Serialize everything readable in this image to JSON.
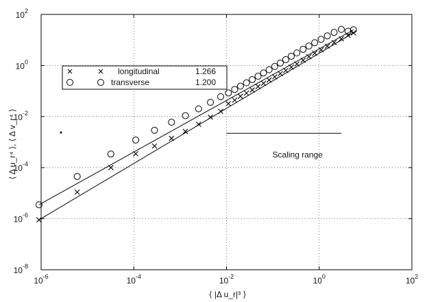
{
  "chart_data": {
    "type": "scatter",
    "title": "",
    "xlabel": "⟨ |Δ u_r|³ ⟩",
    "ylabel": "⟨ Δ u_r⁴ ⟩, ⟨ Δ v_r⁴ ⟩",
    "x_scale": "log",
    "y_scale": "log",
    "xlim": [
      1e-06,
      100
    ],
    "ylim": [
      1e-08,
      100
    ],
    "grid": true,
    "x_ticks": [
      1e-06,
      0.0001,
      0.01,
      1,
      100
    ],
    "y_ticks": [
      1e-08,
      1e-06,
      0.0001,
      0.01,
      1,
      100
    ],
    "x_tick_labels": [
      {
        "base": "10",
        "exp": "-6"
      },
      {
        "base": "10",
        "exp": "-4"
      },
      {
        "base": "10",
        "exp": "-2"
      },
      {
        "base": "10",
        "exp": "0"
      },
      {
        "base": "10",
        "exp": "2"
      }
    ],
    "y_tick_labels": [
      {
        "base": "10",
        "exp": "-8"
      },
      {
        "base": "10",
        "exp": "-6"
      },
      {
        "base": "10",
        "exp": "-4"
      },
      {
        "base": "10",
        "exp": "-2"
      },
      {
        "base": "10",
        "exp": "0"
      },
      {
        "base": "10",
        "exp": "2"
      }
    ],
    "legend_position": "upper-left",
    "series": [
      {
        "name": "longitudinal",
        "slope_label": "1.266",
        "marker": "x",
        "points": [
          [
            9e-07,
            9e-07
          ],
          [
            6e-06,
            1.1e-05
          ],
          [
            3.2e-05,
            0.0001
          ],
          [
            0.00011,
            0.00035
          ],
          [
            0.00028,
            0.0007
          ],
          [
            0.00065,
            0.0014
          ],
          [
            0.0013,
            0.0026
          ],
          [
            0.0025,
            0.005
          ],
          [
            0.0045,
            0.0095
          ],
          [
            0.0075,
            0.016
          ],
          [
            0.011,
            0.032
          ],
          [
            0.015,
            0.044
          ],
          [
            0.02,
            0.062
          ],
          [
            0.027,
            0.083
          ],
          [
            0.036,
            0.11
          ],
          [
            0.048,
            0.15
          ],
          [
            0.063,
            0.2
          ],
          [
            0.083,
            0.27
          ],
          [
            0.11,
            0.36
          ],
          [
            0.145,
            0.48
          ],
          [
            0.19,
            0.64
          ],
          [
            0.25,
            0.86
          ],
          [
            0.33,
            1.15
          ],
          [
            0.45,
            1.6
          ],
          [
            0.6,
            2.2
          ],
          [
            0.8,
            3
          ],
          [
            1.1,
            4.1
          ],
          [
            1.5,
            5.7
          ],
          [
            2.1,
            7.9
          ],
          [
            3,
            11
          ],
          [
            4.2,
            15
          ],
          [
            5.5,
            19
          ]
        ],
        "fit": [
          [
            9e-07,
            9e-07
          ],
          [
            5.5,
            19
          ]
        ]
      },
      {
        "name": "transverse",
        "slope_label": "1.200",
        "marker": "o",
        "points": [
          [
            9e-07,
            3.5e-06
          ],
          [
            6e-06,
            4.5e-05
          ],
          [
            3.2e-05,
            0.00034
          ],
          [
            0.00011,
            0.0012
          ],
          [
            0.00028,
            0.0029
          ],
          [
            0.00065,
            0.006
          ],
          [
            0.0013,
            0.0108
          ],
          [
            0.0025,
            0.02
          ],
          [
            0.0045,
            0.036
          ],
          [
            0.0075,
            0.06
          ],
          [
            0.011,
            0.084
          ],
          [
            0.015,
            0.115
          ],
          [
            0.02,
            0.155
          ],
          [
            0.027,
            0.21
          ],
          [
            0.036,
            0.28
          ],
          [
            0.048,
            0.38
          ],
          [
            0.063,
            0.51
          ],
          [
            0.083,
            0.68
          ],
          [
            0.11,
            0.92
          ],
          [
            0.145,
            1.25
          ],
          [
            0.19,
            1.7
          ],
          [
            0.25,
            2.3
          ],
          [
            0.33,
            3.1
          ],
          [
            0.45,
            4.3
          ],
          [
            0.6,
            5.8
          ],
          [
            0.8,
            7.8
          ],
          [
            1.1,
            10.6
          ],
          [
            1.5,
            14.5
          ],
          [
            2.1,
            19.8
          ],
          [
            3,
            26
          ],
          [
            4.2,
            22
          ],
          [
            5.5,
            25
          ]
        ],
        "fit": [
          [
            9e-07,
            3.5e-06
          ],
          [
            5.5,
            25
          ]
        ]
      }
    ],
    "annotations": [
      {
        "text": "Scaling range",
        "x_range": [
          0.01,
          3
        ],
        "y_line": 0.0022,
        "y_text": 0.00025
      }
    ]
  }
}
